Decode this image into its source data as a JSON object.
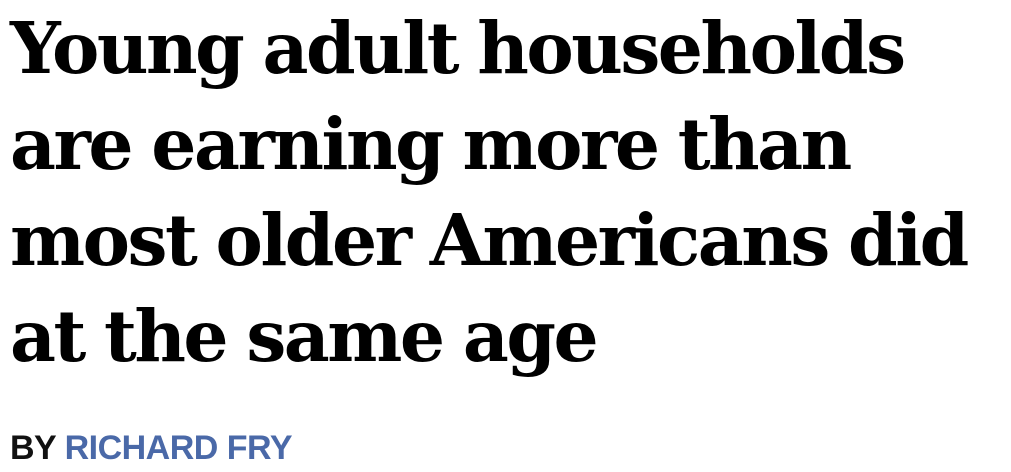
{
  "headline": {
    "lines": [
      "Young adult households",
      "are earning more than",
      "most older Americans did",
      "at the same age"
    ]
  },
  "byline": {
    "prefix": "BY",
    "author": "RICHARD FRY"
  },
  "colors": {
    "headline": "#000000",
    "byline_prefix": "#111111",
    "author_link": "#4a69a8"
  }
}
